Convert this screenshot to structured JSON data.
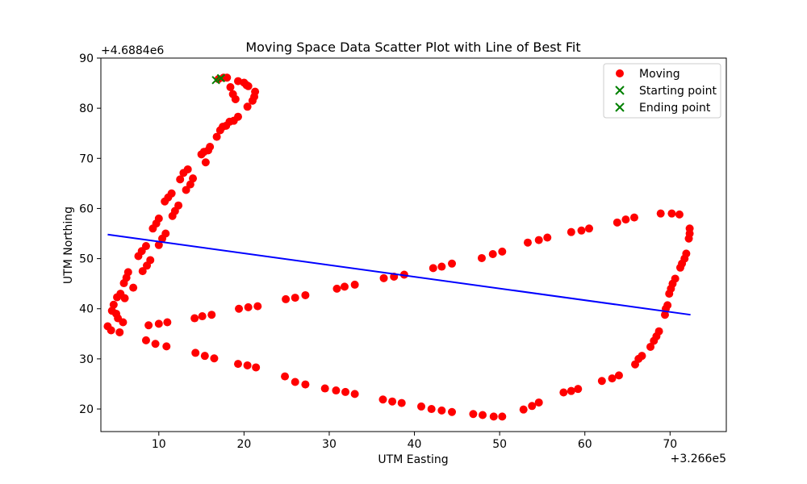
{
  "chart_data": {
    "type": "scatter",
    "title": "Moving Space Data Scatter Plot with Line of Best Fit",
    "xlabel": "UTM Easting",
    "ylabel": "UTM Northing",
    "x_offset_label": "+3.266e5",
    "y_offset_label": "+4.6884e6",
    "xlim": [
      3.2,
      76.6
    ],
    "ylim": [
      15.5,
      90
    ],
    "xticks": [
      10,
      20,
      30,
      40,
      50,
      60,
      70
    ],
    "yticks": [
      20,
      30,
      40,
      50,
      60,
      70,
      80,
      90
    ],
    "grid": false,
    "legend_position": "upper right",
    "colors": {
      "moving": "#ff0000",
      "marker": "#008000",
      "fit": "#0000ff"
    },
    "series": [
      {
        "name": "Moving",
        "kind": "points",
        "marker": "circle",
        "points": [
          [
            17.0,
            85.8
          ],
          [
            17.6,
            86.1
          ],
          [
            18.0,
            86.1
          ],
          [
            18.4,
            84.2
          ],
          [
            18.7,
            82.8
          ],
          [
            19.0,
            81.8
          ],
          [
            19.3,
            85.4
          ],
          [
            20.0,
            85.1
          ],
          [
            20.3,
            84.6
          ],
          [
            20.5,
            84.4
          ],
          [
            21.3,
            83.3
          ],
          [
            21.2,
            82.3
          ],
          [
            21.0,
            81.5
          ],
          [
            20.4,
            80.3
          ],
          [
            19.3,
            78.3
          ],
          [
            18.8,
            77.5
          ],
          [
            18.3,
            77.3
          ],
          [
            17.9,
            76.5
          ],
          [
            17.5,
            76.3
          ],
          [
            17.2,
            75.6
          ],
          [
            16.8,
            74.3
          ],
          [
            16.0,
            72.3
          ],
          [
            15.8,
            71.6
          ],
          [
            15.3,
            71.3
          ],
          [
            15.0,
            70.8
          ],
          [
            15.5,
            69.2
          ],
          [
            14.0,
            66.0
          ],
          [
            13.7,
            64.8
          ],
          [
            13.2,
            63.7
          ],
          [
            13.4,
            67.8
          ],
          [
            12.9,
            67.1
          ],
          [
            12.5,
            65.8
          ],
          [
            11.5,
            63.0
          ],
          [
            11.1,
            62.2
          ],
          [
            10.7,
            61.4
          ],
          [
            12.3,
            60.6
          ],
          [
            11.9,
            59.5
          ],
          [
            11.6,
            58.5
          ],
          [
            10.0,
            58.0
          ],
          [
            9.7,
            57.0
          ],
          [
            9.3,
            56.0
          ],
          [
            10.8,
            55.0
          ],
          [
            10.4,
            54.0
          ],
          [
            10.0,
            52.7
          ],
          [
            8.5,
            52.5
          ],
          [
            8.0,
            51.5
          ],
          [
            7.6,
            50.5
          ],
          [
            9.0,
            49.7
          ],
          [
            8.6,
            48.6
          ],
          [
            8.1,
            47.5
          ],
          [
            6.4,
            47.3
          ],
          [
            6.2,
            46.2
          ],
          [
            5.9,
            45.1
          ],
          [
            7.0,
            44.2
          ],
          [
            5.5,
            43.0
          ],
          [
            5.1,
            42.3
          ],
          [
            6.0,
            42.1
          ],
          [
            4.7,
            40.8
          ],
          [
            4.5,
            39.6
          ],
          [
            5.0,
            39.0
          ],
          [
            5.2,
            38.1
          ],
          [
            5.8,
            37.3
          ],
          [
            4.0,
            36.5
          ],
          [
            4.4,
            35.7
          ],
          [
            5.4,
            35.3
          ],
          [
            8.8,
            36.7
          ],
          [
            10.0,
            37.0
          ],
          [
            11.0,
            37.3
          ],
          [
            14.2,
            38.1
          ],
          [
            15.1,
            38.5
          ],
          [
            16.2,
            38.8
          ],
          [
            19.4,
            40.0
          ],
          [
            20.5,
            40.3
          ],
          [
            21.6,
            40.5
          ],
          [
            24.9,
            41.9
          ],
          [
            26.0,
            42.2
          ],
          [
            27.2,
            42.7
          ],
          [
            30.9,
            44.0
          ],
          [
            31.8,
            44.4
          ],
          [
            33.0,
            44.8
          ],
          [
            36.4,
            46.1
          ],
          [
            37.6,
            46.4
          ],
          [
            38.8,
            46.8
          ],
          [
            42.2,
            48.1
          ],
          [
            43.2,
            48.4
          ],
          [
            44.4,
            49.0
          ],
          [
            47.9,
            50.1
          ],
          [
            49.2,
            50.9
          ],
          [
            50.3,
            51.4
          ],
          [
            53.3,
            53.2
          ],
          [
            54.6,
            53.7
          ],
          [
            55.6,
            54.2
          ],
          [
            58.4,
            55.3
          ],
          [
            59.6,
            55.6
          ],
          [
            60.5,
            56.0
          ],
          [
            63.8,
            57.2
          ],
          [
            64.8,
            57.8
          ],
          [
            65.8,
            58.2
          ],
          [
            68.9,
            59.0
          ],
          [
            70.2,
            59.0
          ],
          [
            71.1,
            58.8
          ],
          [
            72.3,
            56.0
          ],
          [
            72.3,
            55.0
          ],
          [
            72.2,
            54.0
          ],
          [
            71.9,
            51.0
          ],
          [
            71.7,
            50.0
          ],
          [
            71.4,
            49.0
          ],
          [
            71.2,
            48.2
          ],
          [
            70.6,
            46.0
          ],
          [
            70.3,
            45.0
          ],
          [
            70.1,
            44.0
          ],
          [
            69.9,
            43.0
          ],
          [
            69.7,
            40.7
          ],
          [
            69.5,
            40.0
          ],
          [
            69.4,
            38.8
          ],
          [
            68.7,
            35.5
          ],
          [
            68.4,
            34.5
          ],
          [
            68.1,
            33.6
          ],
          [
            67.7,
            32.4
          ],
          [
            66.7,
            30.6
          ],
          [
            66.3,
            30.0
          ],
          [
            65.9,
            28.9
          ],
          [
            64.0,
            26.7
          ],
          [
            63.2,
            26.1
          ],
          [
            62.0,
            25.6
          ],
          [
            59.2,
            24.0
          ],
          [
            58.4,
            23.6
          ],
          [
            57.5,
            23.3
          ],
          [
            54.6,
            21.3
          ],
          [
            53.8,
            20.6
          ],
          [
            52.8,
            19.9
          ],
          [
            50.3,
            18.5
          ],
          [
            49.3,
            18.5
          ],
          [
            48.0,
            18.8
          ],
          [
            46.9,
            19.0
          ],
          [
            44.4,
            19.4
          ],
          [
            43.2,
            19.7
          ],
          [
            42.0,
            20.0
          ],
          [
            40.8,
            20.5
          ],
          [
            38.5,
            21.2
          ],
          [
            37.4,
            21.5
          ],
          [
            36.3,
            21.9
          ],
          [
            33.0,
            23.0
          ],
          [
            31.9,
            23.4
          ],
          [
            30.8,
            23.7
          ],
          [
            29.5,
            24.1
          ],
          [
            27.2,
            24.9
          ],
          [
            26.0,
            25.4
          ],
          [
            24.8,
            26.5
          ],
          [
            21.4,
            28.3
          ],
          [
            20.4,
            28.7
          ],
          [
            19.3,
            29.0
          ],
          [
            16.5,
            30.1
          ],
          [
            15.4,
            30.6
          ],
          [
            14.3,
            31.2
          ],
          [
            10.9,
            32.5
          ],
          [
            9.6,
            33.0
          ],
          [
            8.5,
            33.7
          ]
        ]
      },
      {
        "name": "Starting point",
        "kind": "points",
        "marker": "x",
        "points": [
          [
            16.7,
            85.6
          ]
        ]
      },
      {
        "name": "Ending point",
        "kind": "points",
        "marker": "x",
        "points": [
          [
            17.3,
            86.0
          ]
        ]
      }
    ],
    "fit_line": {
      "x": [
        4.0,
        72.4
      ],
      "y": [
        54.8,
        38.8
      ]
    },
    "legend": [
      "Moving",
      "Starting point",
      "Ending point"
    ]
  }
}
